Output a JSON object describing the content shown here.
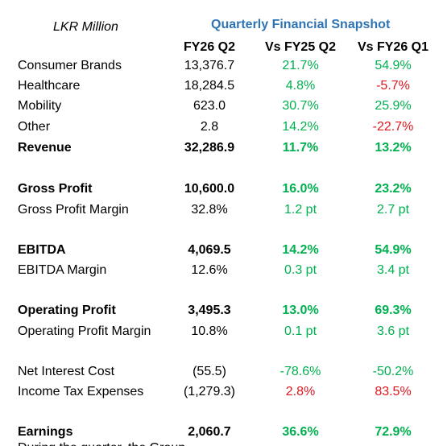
{
  "header": {
    "unit": "LKR Million",
    "title": "Quarterly Financial Snapshot",
    "columns": [
      "FY26 Q2",
      "Vs FY25 Q2",
      "Vs FY26 Q1"
    ]
  },
  "rows": [
    {
      "label": "Consumer Brands",
      "v1": "13,376.7",
      "v2": "21.7%",
      "v3": "54.9%"
    },
    {
      "label": "Healthcare",
      "v1": "18,284.5",
      "v2": "4.8%",
      "v3": "-5.7%"
    },
    {
      "label": "Mobility",
      "v1": "623.0",
      "v2": "30.7%",
      "v3": "25.9%"
    },
    {
      "label": "Other",
      "v1": "2.8",
      "v2": "14.2%",
      "v3": "-22.7%"
    },
    {
      "label": "Revenue",
      "v1": "32,286.9",
      "v2": "11.7%",
      "v3": "13.2%"
    },
    {
      "label": "Gross Profit",
      "v1": "10,600.0",
      "v2": "16.0%",
      "v3": "23.2%"
    },
    {
      "label": "Gross Profit Margin",
      "v1": "32.8%",
      "v2": "1.2 pt",
      "v3": "2.7 pt"
    },
    {
      "label": "EBITDA",
      "v1": "4,069.5",
      "v2": "14.2%",
      "v3": "54.9%"
    },
    {
      "label": "EBITDA Margin",
      "v1": "12.6%",
      "v2": "0.3 pt",
      "v3": "3.4 pt"
    },
    {
      "label": "Operating Profit",
      "v1": "3,495.3",
      "v2": "13.0%",
      "v3": "69.3%"
    },
    {
      "label": "Operating Profit Margin",
      "v1": "10.8%",
      "v2": "0.1 pt",
      "v3": "3.6 pt"
    },
    {
      "label": "Net Interest Cost",
      "v1": "(55.5)",
      "v2": "-78.6%",
      "v3": "-50.2%"
    },
    {
      "label": "Income Tax Expenses",
      "v1": "(1,279.3)",
      "v2": "2.8%",
      "v3": "83.5%"
    },
    {
      "label": "Earnings",
      "v1": "2,060.7",
      "v2": "36.6%",
      "v3": "72.9%"
    }
  ],
  "footer_text": "During the quarter, the Group ...",
  "colors": {
    "positive": "#00b050",
    "negative": "#e0161e",
    "title": "#2e74b5"
  }
}
